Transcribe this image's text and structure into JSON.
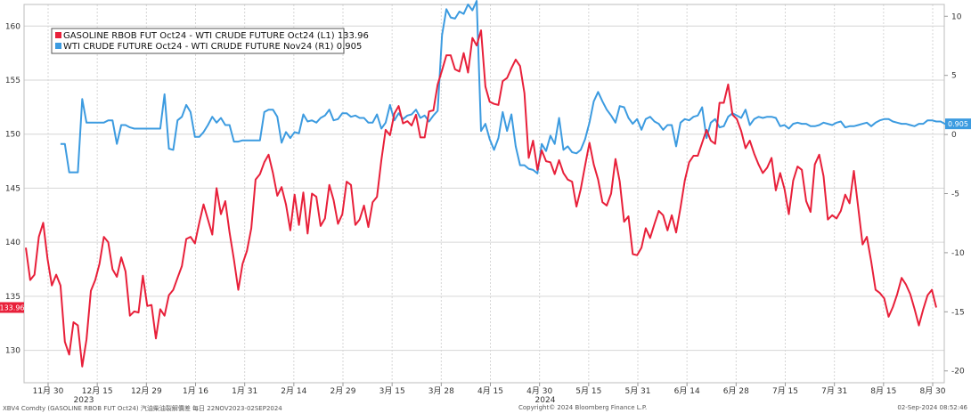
{
  "chart_data": {
    "type": "line",
    "left_axis": {
      "ylim": [
        127,
        162
      ],
      "ticks": [
        130,
        135,
        140,
        145,
        150,
        155,
        160
      ]
    },
    "right_axis": {
      "ylim": [
        -21,
        11
      ],
      "ticks": [
        10,
        5,
        0,
        -5,
        -10,
        -15,
        -20
      ]
    },
    "x_tick_labels": [
      "11月 30",
      "12月 15",
      "12月 29",
      "1月 16",
      "1月 31",
      "2月 14",
      "2月 29",
      "3月 15",
      "3月 28",
      "4月 15",
      "4月 30",
      "5月 15",
      "5月 31",
      "6月 14",
      "6月 28",
      "7月 15",
      "7月 31",
      "8月 15",
      "8月 30"
    ],
    "year_labels": [
      "2023",
      "2024"
    ],
    "grid": true,
    "legend_position": "top-left",
    "series": [
      {
        "name": "GASOLINE RBOB FUT Oct24 - WTI CRUDE FUTURE Oct24 (L1)",
        "last_value": "133.96",
        "axis": "left",
        "color": "#e8203a",
        "values": [
          139.5,
          136.5,
          137,
          140.5,
          141.8,
          138.5,
          136,
          137,
          136,
          130.8,
          129.6,
          132.6,
          132.3,
          128.5,
          131,
          135.5,
          136.5,
          138,
          140.5,
          140,
          137.5,
          136.8,
          138.6,
          137.3,
          133.2,
          133.6,
          133.5,
          136.9,
          134.1,
          134.2,
          131.1,
          133.8,
          133.2,
          135.1,
          135.6,
          136.7,
          137.8,
          140.3,
          140.5,
          139.9,
          141.8,
          143.5,
          142.1,
          140.7,
          145,
          142.6,
          143.8,
          140.9,
          138.4,
          135.6,
          138,
          139.2,
          141.3,
          145.8,
          146.3,
          147.4,
          148.1,
          146.4,
          144.3,
          145.1,
          143.5,
          141.1,
          144.4,
          141.6,
          144.6,
          140.8,
          144.5,
          144.2,
          141.5,
          142.2,
          145.3,
          143.9,
          141.7,
          142.6,
          145.6,
          145.3,
          141.6,
          142.1,
          143.4,
          141.4,
          143.7,
          144.2,
          147.6,
          150.4,
          149.9,
          151.9,
          152.6,
          151,
          151.2,
          150.8,
          151.8,
          149.7,
          149.7,
          152.1,
          152.2,
          154.6,
          155.9,
          157.3,
          157.3,
          156,
          155.8,
          157.5,
          155.7,
          158.9,
          158.2,
          159.6,
          154.4,
          153,
          152.8,
          152.7,
          154.9,
          155.2,
          156.1,
          156.9,
          156.3,
          153.8,
          147.8,
          149.4,
          146.7,
          148.5,
          147.5,
          147.4,
          146.3,
          147.6,
          146.4,
          145.8,
          145.6,
          143.3,
          144.9,
          147.1,
          149.2,
          147.2,
          145.8,
          143.7,
          143.4,
          144.5,
          147.7,
          145.6,
          141.9,
          142.4,
          138.9,
          138.8,
          139.5,
          141.3,
          140.4,
          141.7,
          142.9,
          142.5,
          141.1,
          142.5,
          140.9,
          143.2,
          145.7,
          147.4,
          148,
          148,
          149.2,
          150.4,
          149.4,
          149.1,
          152.9,
          152.9,
          154.6,
          151.8,
          151.4,
          150.3,
          148.7,
          149.4,
          148.2,
          147.2,
          146.4,
          146.9,
          147.8,
          144.8,
          146.4,
          144.9,
          142.6,
          145.7,
          147,
          146.7,
          143.8,
          142.8,
          147.2,
          148.1,
          146.1,
          142.1,
          142.5,
          142.2,
          142.9,
          144.4,
          143.6,
          146.6,
          143.2,
          139.8,
          140.5,
          138.2,
          135.6,
          135.3,
          134.8,
          133.1,
          134,
          135.2,
          136.7,
          136.1,
          135.2,
          133.8,
          132.3,
          133.8,
          135.1,
          135.6,
          133.96
        ]
      },
      {
        "name": "WTI CRUDE FUTURE Oct24 - WTI CRUDE FUTURE Nov24 (R1)",
        "last_value": "0.905",
        "axis": "right",
        "color": "#3c9be0",
        "values": [
          null,
          null,
          null,
          null,
          null,
          null,
          null,
          null,
          -0.8,
          -0.8,
          -3.2,
          -3.2,
          -3.2,
          3,
          1,
          1,
          1,
          1,
          1,
          1.2,
          1.2,
          -0.8,
          0.8,
          0.8,
          0.6,
          0.5,
          0.5,
          0.5,
          0.5,
          0.5,
          0.5,
          0.5,
          3.4,
          -1.2,
          -1.3,
          1.2,
          1.5,
          2.5,
          1.9,
          -0.2,
          -0.2,
          0.2,
          0.8,
          1.5,
          1,
          1.4,
          0.8,
          0.8,
          -0.6,
          -0.6,
          -0.5,
          -0.5,
          -0.5,
          -0.5,
          -0.5,
          1.9,
          2.1,
          2.1,
          1.5,
          -0.7,
          0.2,
          -0.3,
          0.2,
          0.1,
          1.7,
          1.1,
          1.2,
          1,
          1.4,
          1.6,
          2.1,
          1.2,
          1.3,
          1.8,
          1.8,
          1.5,
          1.6,
          1.4,
          1.4,
          1,
          1,
          1.7,
          0.5,
          1,
          2.5,
          1.2,
          1.8,
          1.3,
          1.6,
          1.7,
          2.1,
          1.4,
          1.6,
          1.1,
          1.6,
          2,
          8.4,
          10.6,
          9.9,
          9.8,
          10.4,
          10.2,
          11,
          10.5,
          11.3,
          0.3,
          0.9,
          -0.4,
          -1.3,
          -0.3,
          1.9,
          0.3,
          1.7,
          -1,
          -2.6,
          -2.6,
          -2.9,
          -3,
          -3.3,
          -0.8,
          -1.4,
          -0.1,
          -0.8,
          1.4,
          -1.3,
          -1,
          -1.5,
          -1.6,
          -1.3,
          -0.4,
          1,
          2.8,
          3.6,
          2.8,
          2.1,
          1.6,
          1,
          2.4,
          2.3,
          1.4,
          0.9,
          1.3,
          0.4,
          1.3,
          1.5,
          1.1,
          0.9,
          0.4,
          0.8,
          0.8,
          -1,
          1,
          1.3,
          1.2,
          1.5,
          1.6,
          2.3,
          -0.3,
          1,
          1.3,
          0.6,
          0.7,
          1.5,
          1.8,
          1.6,
          1.4,
          2.1,
          0.8,
          1.3,
          1.5,
          1.4,
          1.5,
          1.5,
          1.4,
          0.7,
          0.8,
          0.5,
          0.9,
          1,
          0.9,
          0.9,
          0.7,
          0.7,
          0.8,
          1,
          0.9,
          0.8,
          1,
          1.1,
          0.6,
          0.7,
          0.7,
          0.8,
          0.9,
          1,
          0.7,
          1,
          1.2,
          1.3,
          1.3,
          1.1,
          1,
          0.9,
          0.9,
          0.8,
          0.7,
          0.9,
          0.9,
          1.2,
          1.2,
          1.1,
          1.1,
          0.9,
          0.9
        ]
      }
    ]
  },
  "footer": {
    "left": "XBV4 Comdty (GASOLINE RBOB FUT Oct24) 汽油柴油裂解價差  每日 22NOV2023-02SEP2024",
    "center": "Copyright© 2024 Bloomberg Finance L.P.",
    "right": "02-Sep-2024 08:52:46"
  },
  "colors": {
    "grid": "#d6d6d6",
    "axis_text": "#333333"
  }
}
